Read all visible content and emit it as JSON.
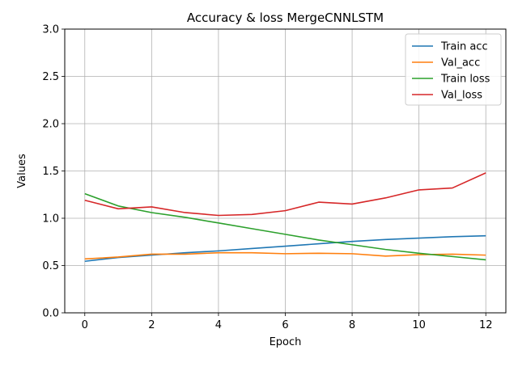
{
  "chart_data": {
    "type": "line",
    "title": "Accuracy & loss MergeCNNLSTM",
    "xlabel": "Epoch",
    "ylabel": "Values",
    "xlim": [
      -0.6,
      12.6
    ],
    "ylim": [
      0,
      3.0
    ],
    "xticks": [
      0,
      2,
      4,
      6,
      8,
      10,
      12
    ],
    "xtick_labels": [
      "0",
      "2",
      "4",
      "6",
      "8",
      "10",
      "12"
    ],
    "yticks": [
      0,
      0.5,
      1.0,
      1.5,
      2.0,
      2.5,
      3.0
    ],
    "ytick_labels": [
      "0.0",
      "0.5",
      "1.0",
      "1.5",
      "2.0",
      "2.5",
      "3.0"
    ],
    "grid": true,
    "legend_position": "top-right",
    "x": [
      0,
      1,
      2,
      3,
      4,
      5,
      6,
      7,
      8,
      9,
      10,
      11,
      12
    ],
    "series": [
      {
        "name": "Train acc",
        "color": "#1f77b4",
        "values": [
          0.545,
          0.585,
          0.61,
          0.635,
          0.655,
          0.68,
          0.705,
          0.73,
          0.755,
          0.775,
          0.79,
          0.805,
          0.815
        ]
      },
      {
        "name": "Val_acc",
        "color": "#ff7f0e",
        "values": [
          0.57,
          0.59,
          0.62,
          0.62,
          0.635,
          0.635,
          0.625,
          0.63,
          0.625,
          0.6,
          0.615,
          0.62,
          0.61
        ]
      },
      {
        "name": "Train loss",
        "color": "#2ca02c",
        "values": [
          1.26,
          1.13,
          1.06,
          1.01,
          0.95,
          0.89,
          0.83,
          0.77,
          0.72,
          0.67,
          0.63,
          0.595,
          0.56
        ]
      },
      {
        "name": "Val_loss",
        "color": "#d62728",
        "values": [
          1.19,
          1.1,
          1.12,
          1.06,
          1.03,
          1.04,
          1.08,
          1.17,
          1.15,
          1.215,
          1.3,
          1.32,
          1.48
        ]
      }
    ]
  }
}
